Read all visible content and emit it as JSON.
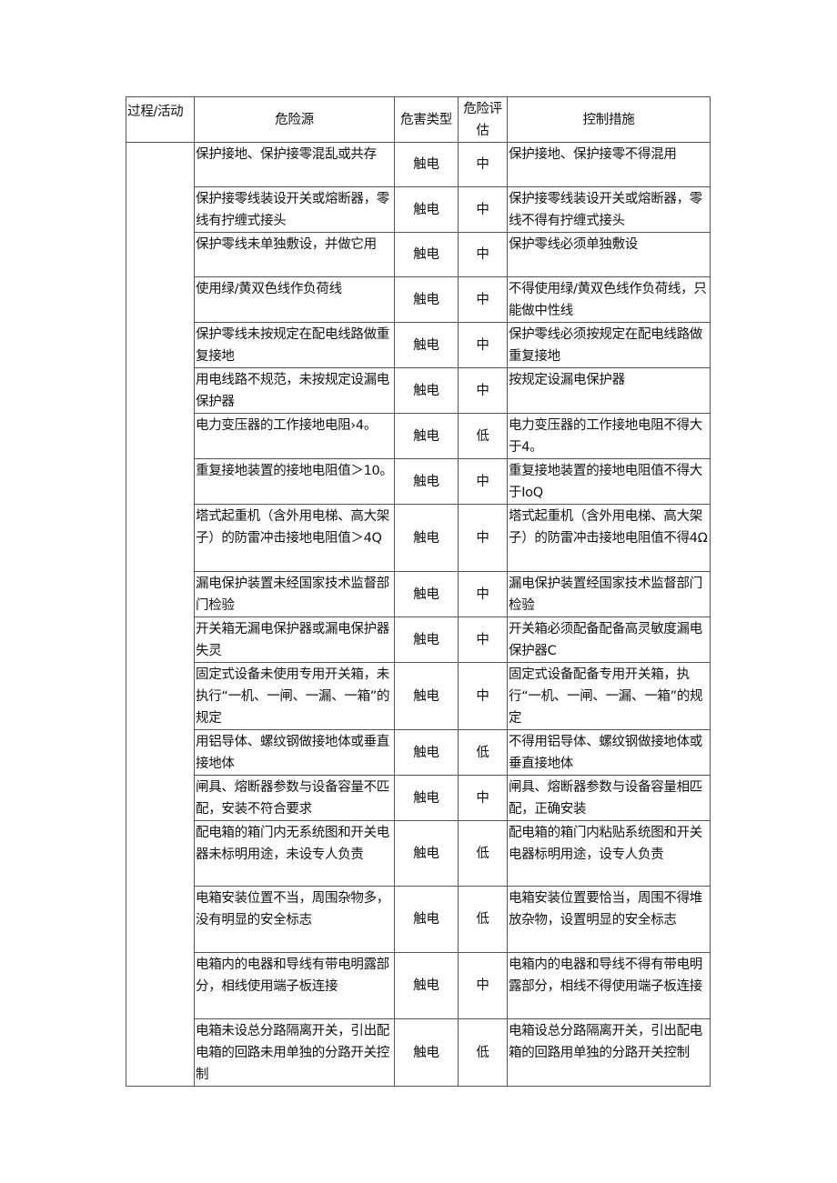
{
  "header": [
    "过程/活动",
    "危险源",
    "危害类型",
    "危险评估",
    "控制措施"
  ],
  "rows": [
    {
      "source": "保护接地、保护接零混乱或共存",
      "type": "触电",
      "risk": "中",
      "control": "保护接地、保护接零不得混用"
    },
    {
      "source": "保护接零线装设开关或熔断器，零线有拧缠式接头",
      "type": "触电",
      "risk": "中",
      "control": "保护接零线装设开关或熔断器，零线不得有拧缠式接头"
    },
    {
      "source": "保护零线未单独敷设，并做它用",
      "type": "触电",
      "risk": "中",
      "control": "保护零线必须单独敷设"
    },
    {
      "source": "使用绿/黄双色线作负荷线",
      "type": "触电",
      "risk": "中",
      "control": "不得使用绿/黄双色线作负荷线，只能做中性线"
    },
    {
      "source": "保护零线未按规定在配电线路做重复接地",
      "type": "触电",
      "risk": "中",
      "control": "保护零线必须按规定在配电线路做重复接地"
    },
    {
      "source": "用电线路不规范，未按规定设漏电保护器",
      "type": "触电",
      "risk": "中",
      "control": "按规定设漏电保护器"
    },
    {
      "source": "电力变压器的工作接地电阻›4。",
      "type": "触电",
      "risk": "低",
      "control": "电力变压器的工作接地电阻不得大于4。"
    },
    {
      "source": "重复接地装置的接地电阻值＞10。",
      "type": "触电",
      "risk": "中",
      "control": "重复接地装置的接地电阻值不得大于IoQ"
    },
    {
      "source": "塔式起重机（含外用电梯、高大架子）的防雷冲击接地电阻值＞4Q",
      "type": "触电",
      "risk": "中",
      "control": "塔式起重机（含外用电梯、高大架子）的防雷冲击接地电阻值不得4Ω"
    },
    {
      "source": "漏电保护装置未经国家技术监督部门检验",
      "type": "触电",
      "risk": "中",
      "control": "漏电保护装置经国家技术监督部门检验"
    },
    {
      "source": "开关箱无漏电保护器或漏电保护器失灵",
      "type": "触电",
      "risk": "中",
      "control": "开关箱必须配备配备高灵敏度漏电保护器C"
    },
    {
      "source": "固定式设备未使用专用开关箱，未执行“一机、一闸、一漏、一箱”的规定",
      "type": "触电",
      "risk": "中",
      "control": "固定式设备配备专用开关箱，执行“一机、一闸、一漏、一箱”的规定"
    },
    {
      "source": "用铝导体、螺纹钢做接地体或垂直接地体",
      "type": "触电",
      "risk": "低",
      "control": "不得用铝导体、螺纹钢做接地体或垂直接地体"
    },
    {
      "source": "闸具、熔断器参数与设备容量不匹配，安装不符合要求",
      "type": "触电",
      "risk": "中",
      "control": "闸具、熔断器参数与设备容量相匹配，正确安装"
    },
    {
      "source": "配电箱的箱门内无系统图和开关电器未标明用途，未设专人负责",
      "type": "触电",
      "risk": "低",
      "control": "配电箱的箱门内粘贴系统图和开关电器标明用途，设专人负责"
    },
    {
      "source": "电箱安装位置不当，周围杂物多，没有明显的安全标志",
      "type": "触电",
      "risk": "低",
      "control": "电箱安装位置要恰当，周围不得堆放杂物，设置明显的安全标志"
    },
    {
      "source": "电箱内的电器和导线有带电明露部分，相线使用端子板连接",
      "type": "触电",
      "risk": "中",
      "control": "电箱内的电器和导线不得有带电明露部分，相线不得使用端子板连接"
    },
    {
      "source": "电箱未设总分路隔离开关，引出配电箱的回路未用单独的分路开关控制",
      "type": "触电",
      "risk": "低",
      "control": "电箱设总分路隔离开关，引出配电箱的回路用单独的分路开关控制"
    }
  ]
}
